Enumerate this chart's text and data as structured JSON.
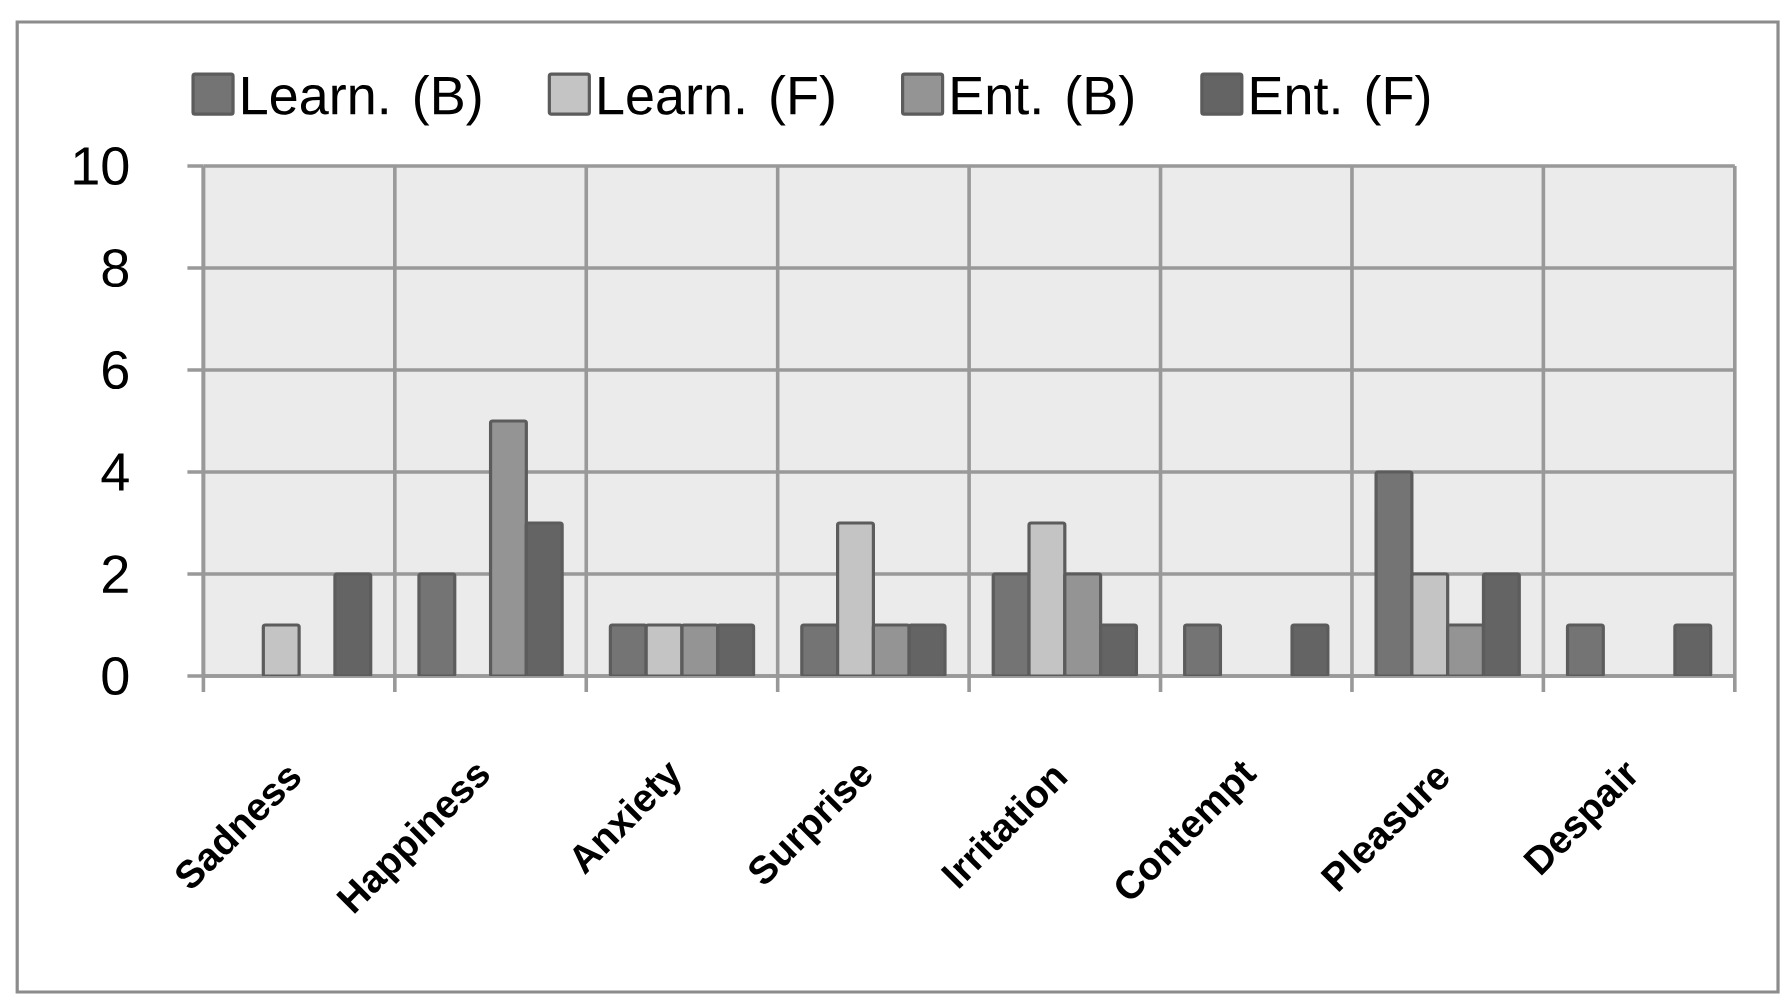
{
  "chart_data": {
    "type": "bar",
    "categories": [
      "Sadness",
      "Happiness",
      "Anxiety",
      "Surprise",
      "Irritation",
      "Contempt",
      "Pleasure",
      "Despair"
    ],
    "series": [
      {
        "name": "Learn. (B)",
        "color": "#747474",
        "values": [
          0,
          2,
          1,
          1,
          2,
          1,
          4,
          1
        ]
      },
      {
        "name": "Learn. (F)",
        "color": "#c4c4c4",
        "values": [
          1,
          0,
          1,
          3,
          3,
          0,
          2,
          0
        ]
      },
      {
        "name": "Ent. (B)",
        "color": "#949494",
        "values": [
          0,
          5,
          1,
          1,
          2,
          0,
          1,
          0
        ]
      },
      {
        "name": "Ent. (F)",
        "color": "#646464",
        "values": [
          2,
          3,
          1,
          1,
          1,
          1,
          2,
          1
        ]
      }
    ],
    "ylim": [
      0,
      10
    ],
    "yticks": [
      0,
      2,
      4,
      6,
      8,
      10
    ],
    "grid": true,
    "legend": "top"
  }
}
